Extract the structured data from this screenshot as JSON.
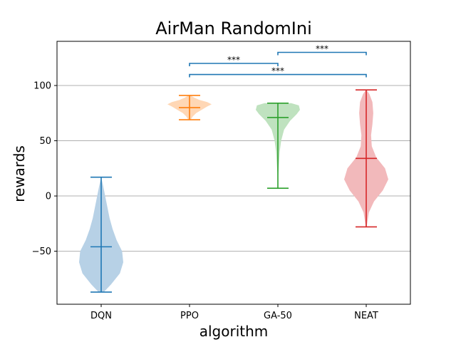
{
  "chart_data": {
    "type": "violin",
    "title": "AirMan RandomIni",
    "xlabel": "algorithm",
    "ylabel": "rewards",
    "ylim": [
      -98,
      140
    ],
    "yticks": [
      -50,
      0,
      50,
      100
    ],
    "grid": "horizontal",
    "categories": [
      "DQN",
      "PPO",
      "GA-50",
      "NEAT"
    ],
    "series": [
      {
        "category": "DQN",
        "color": "#1f77b4",
        "fill": "#b7d1e6",
        "min": -87,
        "median": -46,
        "max": 17,
        "density": [
          [
            -87,
            0.12
          ],
          [
            -80,
            0.45
          ],
          [
            -70,
            0.85
          ],
          [
            -60,
            1.0
          ],
          [
            -50,
            0.95
          ],
          [
            -40,
            0.7
          ],
          [
            -30,
            0.52
          ],
          [
            -20,
            0.38
          ],
          [
            -10,
            0.28
          ],
          [
            0,
            0.18
          ],
          [
            10,
            0.08
          ],
          [
            17,
            0.0
          ]
        ]
      },
      {
        "category": "PPO",
        "color": "#ff7f0e",
        "fill": "#ffd7b5",
        "min": 69,
        "median": 80,
        "max": 91,
        "density": [
          [
            69,
            0.05
          ],
          [
            72,
            0.15
          ],
          [
            75,
            0.3
          ],
          [
            78,
            0.55
          ],
          [
            81,
            0.8
          ],
          [
            83,
            1.0
          ],
          [
            85,
            0.8
          ],
          [
            87,
            0.45
          ],
          [
            89,
            0.22
          ],
          [
            91,
            0.05
          ]
        ]
      },
      {
        "category": "GA-50",
        "color": "#2ca02c",
        "fill": "#bfe2bf",
        "min": 7,
        "median": 71,
        "max": 84,
        "density": [
          [
            7,
            0.0
          ],
          [
            20,
            0.02
          ],
          [
            30,
            0.05
          ],
          [
            40,
            0.08
          ],
          [
            50,
            0.15
          ],
          [
            60,
            0.28
          ],
          [
            68,
            0.55
          ],
          [
            74,
            0.85
          ],
          [
            78,
            1.0
          ],
          [
            82,
            0.95
          ],
          [
            84,
            0.6
          ]
        ]
      },
      {
        "category": "NEAT",
        "color": "#d62728",
        "fill": "#f2b9bb",
        "min": -28,
        "median": 34,
        "max": 96,
        "density": [
          [
            -28,
            0.02
          ],
          [
            -15,
            0.12
          ],
          [
            -5,
            0.35
          ],
          [
            5,
            0.75
          ],
          [
            15,
            1.0
          ],
          [
            25,
            0.85
          ],
          [
            35,
            0.45
          ],
          [
            45,
            0.25
          ],
          [
            55,
            0.22
          ],
          [
            65,
            0.28
          ],
          [
            75,
            0.32
          ],
          [
            85,
            0.28
          ],
          [
            92,
            0.15
          ],
          [
            96,
            0.02
          ]
        ]
      }
    ],
    "significance": [
      {
        "from": "PPO",
        "to": "GA-50",
        "y": 120,
        "label": "***"
      },
      {
        "from": "GA-50",
        "to": "NEAT",
        "y": 130,
        "label": "***"
      },
      {
        "from": "PPO",
        "to": "NEAT",
        "y": 110,
        "label": "***"
      }
    ],
    "bracket_color": "#1f77b4"
  }
}
